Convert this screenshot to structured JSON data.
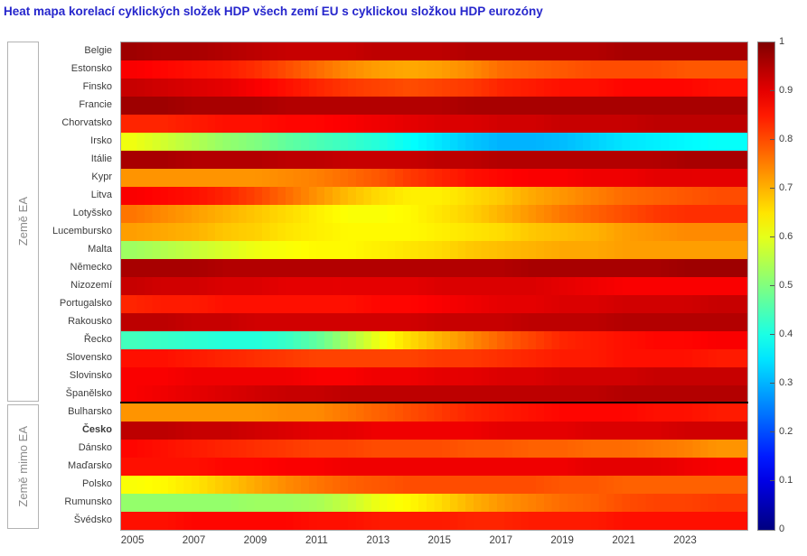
{
  "title": "Heat mapa korelací cyklických složek HDP všech zemí EU s cyklickou složkou HDP eurozóny",
  "groups": {
    "ea_label": "Země EA",
    "non_ea_label": "Země mimo EA"
  },
  "colors": {
    "title_blue": "#2626cc",
    "axis_text": "#3c3c3c",
    "group_text": "#8a8a8a",
    "group_border": "#b3b3b3",
    "plot_border": "#a6a6a6",
    "separator": "#000000"
  },
  "chart_data": {
    "type": "heatmap",
    "colormap": "jet",
    "value_range": [
      0,
      1
    ],
    "x_domain": [
      2004.6,
      2025.0
    ],
    "x_years": [
      2005,
      2006,
      2007,
      2008,
      2009,
      2010,
      2011,
      2012,
      2013,
      2014,
      2015,
      2016,
      2017,
      2018,
      2019,
      2020,
      2021,
      2022,
      2023,
      2024
    ],
    "x_tick_labels": [
      "2005",
      "2007",
      "2009",
      "2011",
      "2013",
      "2015",
      "2017",
      "2019",
      "2021",
      "2023"
    ],
    "x_tick_years": [
      2005,
      2007,
      2009,
      2011,
      2013,
      2015,
      2017,
      2019,
      2021,
      2023
    ],
    "colorbar_tick_labels": [
      "1",
      "0.9",
      "0.8",
      "0.7",
      "0.6",
      "0.5",
      "0.4",
      "0.3",
      "0.2",
      "0.1",
      "0"
    ],
    "colorbar_tick_values": [
      1,
      0.9,
      0.8,
      0.7,
      0.6,
      0.5,
      0.4,
      0.3,
      0.2,
      0.1,
      0
    ],
    "rows": [
      {
        "label": "Belgie",
        "group": "EA",
        "bold": false,
        "values": [
          0.97,
          0.96,
          0.96,
          0.95,
          0.94,
          0.93,
          0.93,
          0.93,
          0.94,
          0.94,
          0.94,
          0.95,
          0.95,
          0.95,
          0.95,
          0.95,
          0.96,
          0.96,
          0.96,
          0.96
        ]
      },
      {
        "label": "Estonsko",
        "group": "EA",
        "bold": false,
        "values": [
          0.88,
          0.87,
          0.86,
          0.85,
          0.83,
          0.8,
          0.77,
          0.74,
          0.72,
          0.71,
          0.72,
          0.74,
          0.77,
          0.78,
          0.79,
          0.8,
          0.8,
          0.8,
          0.79,
          0.79
        ]
      },
      {
        "label": "Finsko",
        "group": "EA",
        "bold": false,
        "values": [
          0.93,
          0.92,
          0.91,
          0.9,
          0.88,
          0.86,
          0.84,
          0.82,
          0.81,
          0.8,
          0.81,
          0.82,
          0.84,
          0.85,
          0.86,
          0.86,
          0.87,
          0.87,
          0.87,
          0.86
        ]
      },
      {
        "label": "Francie",
        "group": "EA",
        "bold": false,
        "values": [
          0.97,
          0.97,
          0.96,
          0.96,
          0.96,
          0.95,
          0.95,
          0.95,
          0.95,
          0.95,
          0.95,
          0.96,
          0.96,
          0.96,
          0.96,
          0.96,
          0.96,
          0.96,
          0.96,
          0.96
        ]
      },
      {
        "label": "Chorvatsko",
        "group": "EA",
        "bold": false,
        "values": [
          0.84,
          0.84,
          0.85,
          0.86,
          0.86,
          0.87,
          0.87,
          0.88,
          0.89,
          0.9,
          0.91,
          0.91,
          0.92,
          0.92,
          0.93,
          0.93,
          0.93,
          0.94,
          0.94,
          0.94
        ]
      },
      {
        "label": "Irsko",
        "group": "EA",
        "bold": false,
        "values": [
          0.61,
          0.58,
          0.55,
          0.52,
          0.5,
          0.47,
          0.45,
          0.43,
          0.41,
          0.38,
          0.35,
          0.32,
          0.3,
          0.3,
          0.31,
          0.33,
          0.35,
          0.36,
          0.37,
          0.38
        ]
      },
      {
        "label": "Itálie",
        "group": "EA",
        "bold": false,
        "values": [
          0.96,
          0.96,
          0.95,
          0.95,
          0.95,
          0.94,
          0.94,
          0.93,
          0.93,
          0.93,
          0.94,
          0.94,
          0.95,
          0.95,
          0.95,
          0.95,
          0.95,
          0.95,
          0.96,
          0.96
        ]
      },
      {
        "label": "Kypr",
        "group": "EA",
        "bold": false,
        "values": [
          0.73,
          0.73,
          0.73,
          0.73,
          0.73,
          0.74,
          0.75,
          0.77,
          0.79,
          0.82,
          0.84,
          0.86,
          0.87,
          0.88,
          0.88,
          0.89,
          0.89,
          0.9,
          0.9,
          0.9
        ]
      },
      {
        "label": "Litva",
        "group": "EA",
        "bold": false,
        "values": [
          0.88,
          0.87,
          0.86,
          0.84,
          0.81,
          0.77,
          0.73,
          0.69,
          0.66,
          0.64,
          0.64,
          0.66,
          0.68,
          0.71,
          0.73,
          0.75,
          0.77,
          0.78,
          0.79,
          0.8
        ]
      },
      {
        "label": "Lotyšsko",
        "group": "EA",
        "bold": false,
        "values": [
          0.76,
          0.74,
          0.72,
          0.7,
          0.68,
          0.66,
          0.64,
          0.62,
          0.62,
          0.63,
          0.65,
          0.67,
          0.7,
          0.73,
          0.76,
          0.78,
          0.8,
          0.82,
          0.83,
          0.83
        ]
      },
      {
        "label": "Lucembursko",
        "group": "EA",
        "bold": false,
        "values": [
          0.72,
          0.71,
          0.7,
          0.68,
          0.67,
          0.65,
          0.64,
          0.63,
          0.63,
          0.63,
          0.64,
          0.65,
          0.66,
          0.68,
          0.69,
          0.7,
          0.72,
          0.73,
          0.74,
          0.74
        ]
      },
      {
        "label": "Malta",
        "group": "EA",
        "bold": false,
        "values": [
          0.53,
          0.55,
          0.57,
          0.59,
          0.61,
          0.62,
          0.63,
          0.63,
          0.64,
          0.65,
          0.66,
          0.68,
          0.69,
          0.7,
          0.71,
          0.71,
          0.72,
          0.72,
          0.72,
          0.72
        ]
      },
      {
        "label": "Německo",
        "group": "EA",
        "bold": false,
        "values": [
          0.96,
          0.96,
          0.96,
          0.95,
          0.95,
          0.95,
          0.95,
          0.95,
          0.95,
          0.95,
          0.95,
          0.95,
          0.95,
          0.96,
          0.96,
          0.96,
          0.96,
          0.96,
          0.97,
          0.97
        ]
      },
      {
        "label": "Nizozemí",
        "group": "EA",
        "bold": false,
        "values": [
          0.93,
          0.92,
          0.92,
          0.91,
          0.91,
          0.9,
          0.9,
          0.9,
          0.9,
          0.9,
          0.91,
          0.91,
          0.91,
          0.91,
          0.9,
          0.89,
          0.88,
          0.88,
          0.88,
          0.88
        ]
      },
      {
        "label": "Portugalsko",
        "group": "EA",
        "bold": false,
        "values": [
          0.84,
          0.85,
          0.85,
          0.86,
          0.86,
          0.86,
          0.86,
          0.86,
          0.87,
          0.87,
          0.88,
          0.89,
          0.9,
          0.9,
          0.91,
          0.91,
          0.92,
          0.92,
          0.92,
          0.93
        ]
      },
      {
        "label": "Rakousko",
        "group": "EA",
        "bold": false,
        "values": [
          0.94,
          0.94,
          0.93,
          0.93,
          0.92,
          0.92,
          0.92,
          0.92,
          0.92,
          0.92,
          0.93,
          0.93,
          0.93,
          0.94,
          0.94,
          0.94,
          0.95,
          0.95,
          0.95,
          0.95
        ]
      },
      {
        "label": "Řecko",
        "group": "EA",
        "bold": false,
        "values": [
          0.44,
          0.43,
          0.42,
          0.41,
          0.41,
          0.43,
          0.47,
          0.54,
          0.61,
          0.66,
          0.7,
          0.74,
          0.78,
          0.81,
          0.84,
          0.85,
          0.86,
          0.87,
          0.87,
          0.88
        ]
      },
      {
        "label": "Slovensko",
        "group": "EA",
        "bold": false,
        "values": [
          0.86,
          0.86,
          0.85,
          0.84,
          0.83,
          0.82,
          0.81,
          0.81,
          0.81,
          0.81,
          0.82,
          0.82,
          0.83,
          0.84,
          0.85,
          0.85,
          0.86,
          0.86,
          0.86,
          0.85
        ]
      },
      {
        "label": "Slovinsko",
        "group": "EA",
        "bold": false,
        "values": [
          0.88,
          0.88,
          0.89,
          0.89,
          0.89,
          0.89,
          0.88,
          0.88,
          0.89,
          0.89,
          0.9,
          0.9,
          0.91,
          0.91,
          0.92,
          0.92,
          0.92,
          0.93,
          0.93,
          0.93
        ]
      },
      {
        "label": "Španělsko",
        "group": "EA",
        "bold": false,
        "values": [
          0.88,
          0.89,
          0.9,
          0.91,
          0.92,
          0.93,
          0.93,
          0.94,
          0.94,
          0.94,
          0.94,
          0.94,
          0.94,
          0.94,
          0.94,
          0.94,
          0.95,
          0.95,
          0.95,
          0.95
        ]
      },
      {
        "label": "Bulharsko",
        "group": "mimo EA",
        "bold": false,
        "values": [
          0.73,
          0.73,
          0.73,
          0.73,
          0.73,
          0.74,
          0.74,
          0.76,
          0.78,
          0.8,
          0.82,
          0.84,
          0.85,
          0.86,
          0.87,
          0.87,
          0.87,
          0.86,
          0.86,
          0.85
        ]
      },
      {
        "label": "Česko",
        "group": "mimo EA",
        "bold": true,
        "values": [
          0.94,
          0.94,
          0.93,
          0.93,
          0.92,
          0.91,
          0.9,
          0.9,
          0.89,
          0.89,
          0.89,
          0.89,
          0.9,
          0.9,
          0.9,
          0.91,
          0.91,
          0.91,
          0.92,
          0.92
        ]
      },
      {
        "label": "Dánsko",
        "group": "mimo EA",
        "bold": false,
        "values": [
          0.87,
          0.86,
          0.85,
          0.84,
          0.83,
          0.82,
          0.81,
          0.81,
          0.8,
          0.8,
          0.8,
          0.79,
          0.79,
          0.78,
          0.78,
          0.77,
          0.77,
          0.76,
          0.75,
          0.73
        ]
      },
      {
        "label": "Maďarsko",
        "group": "mimo EA",
        "bold": false,
        "values": [
          0.86,
          0.86,
          0.86,
          0.87,
          0.87,
          0.88,
          0.88,
          0.89,
          0.89,
          0.89,
          0.89,
          0.89,
          0.89,
          0.89,
          0.89,
          0.9,
          0.9,
          0.9,
          0.89,
          0.88
        ]
      },
      {
        "label": "Polsko",
        "group": "mimo EA",
        "bold": false,
        "values": [
          0.62,
          0.63,
          0.65,
          0.68,
          0.71,
          0.74,
          0.76,
          0.78,
          0.79,
          0.8,
          0.8,
          0.8,
          0.8,
          0.8,
          0.79,
          0.79,
          0.78,
          0.78,
          0.78,
          0.78
        ]
      },
      {
        "label": "Rumunsko",
        "group": "mimo EA",
        "bold": false,
        "values": [
          0.52,
          0.52,
          0.52,
          0.52,
          0.53,
          0.53,
          0.54,
          0.57,
          0.61,
          0.63,
          0.66,
          0.7,
          0.73,
          0.75,
          0.77,
          0.78,
          0.8,
          0.81,
          0.81,
          0.82
        ]
      },
      {
        "label": "Švédsko",
        "group": "mimo EA",
        "bold": false,
        "values": [
          0.86,
          0.86,
          0.87,
          0.87,
          0.87,
          0.87,
          0.86,
          0.86,
          0.85,
          0.85,
          0.85,
          0.84,
          0.84,
          0.85,
          0.85,
          0.85,
          0.86,
          0.86,
          0.86,
          0.86
        ]
      }
    ]
  }
}
